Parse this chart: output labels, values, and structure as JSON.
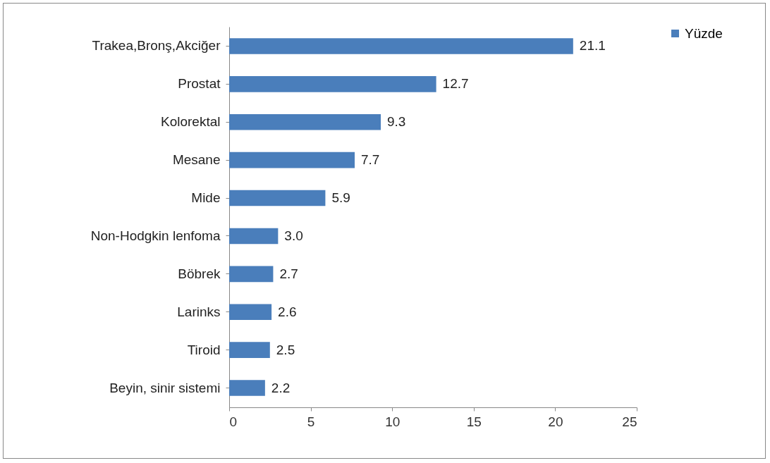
{
  "chart_data": {
    "type": "bar",
    "orientation": "horizontal",
    "categories": [
      "Trakea,Bronş,Akciğer",
      "Prostat",
      "Kolorektal",
      "Mesane",
      "Mide",
      "Non-Hodgkin lenfoma",
      "Böbrek",
      "Larinks",
      "Tiroid",
      "Beyin, sinir sistemi"
    ],
    "series": [
      {
        "name": "Yüzde",
        "color": "#4a7ebb",
        "values": [
          21.1,
          12.7,
          9.3,
          7.7,
          5.9,
          3.0,
          2.7,
          2.6,
          2.5,
          2.2
        ],
        "value_labels": [
          "21.1",
          "12.7",
          "9.3",
          "7.7",
          "5.9",
          "3.0",
          "2.7",
          "2.6",
          "2.5",
          "2.2"
        ]
      }
    ],
    "xlim": [
      0,
      25
    ],
    "xticks": [
      0,
      5,
      10,
      15,
      20,
      25
    ],
    "grid": false,
    "legend": "right"
  }
}
